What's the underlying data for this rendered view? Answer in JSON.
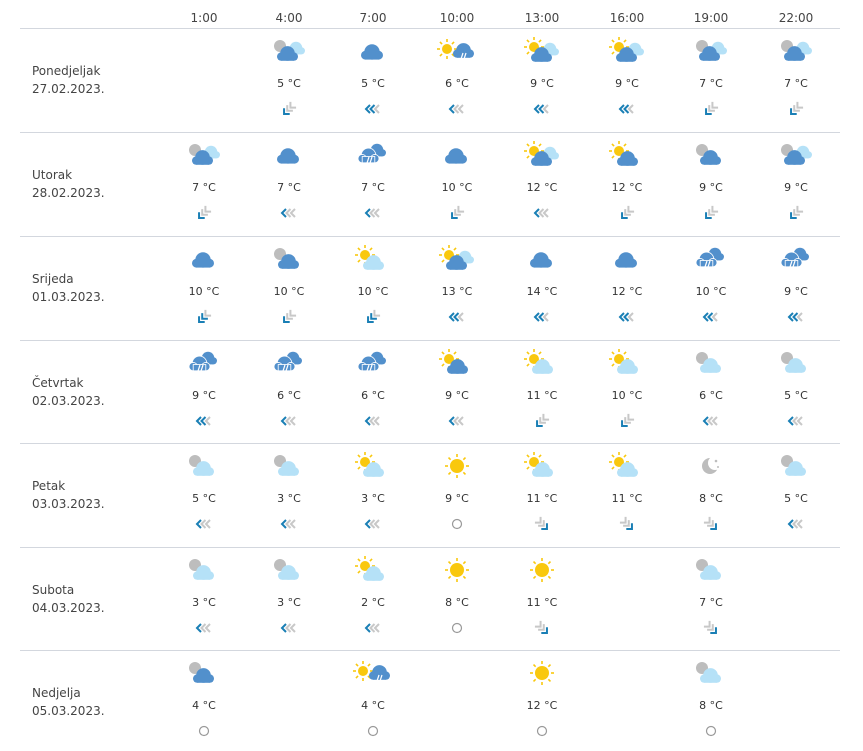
{
  "hours": [
    "1:00",
    "4:00",
    "7:00",
    "10:00",
    "13:00",
    "16:00",
    "19:00",
    "22:00"
  ],
  "colors": {
    "cloud_dark": "#5290cc",
    "cloud_light": "#b5e1f7",
    "sun": "#f9c80e",
    "moon": "#bdbdbd",
    "wind_strong": "#1a7fb5",
    "wind_weak": "#c8c8c8",
    "divider": "#d3d7de"
  },
  "days": [
    {
      "name": "Ponedjeljak",
      "date": "27.02.2023.",
      "slots": [
        null,
        {
          "icon": "moon-clouds",
          "temp": "5 °C",
          "wind": {
            "dir": "SW",
            "strength": 1
          }
        },
        {
          "icon": "cloudy",
          "temp": "5 °C",
          "wind": {
            "dir": "W",
            "strength": 2
          }
        },
        {
          "icon": "sun-rain",
          "temp": "6 °C",
          "wind": {
            "dir": "W",
            "strength": 1
          }
        },
        {
          "icon": "sun-clouds",
          "temp": "9 °C",
          "wind": {
            "dir": "W",
            "strength": 2
          }
        },
        {
          "icon": "sun-clouds",
          "temp": "9 °C",
          "wind": {
            "dir": "W",
            "strength": 2
          }
        },
        {
          "icon": "moon-clouds",
          "temp": "7 °C",
          "wind": {
            "dir": "SW",
            "strength": 1
          }
        },
        {
          "icon": "moon-clouds",
          "temp": "7 °C",
          "wind": {
            "dir": "SW",
            "strength": 1
          }
        }
      ]
    },
    {
      "name": "Utorak",
      "date": "28.02.2023.",
      "slots": [
        {
          "icon": "moon-clouds",
          "temp": "7 °C",
          "wind": {
            "dir": "SW",
            "strength": 1
          }
        },
        {
          "icon": "cloudy",
          "temp": "7 °C",
          "wind": {
            "dir": "W",
            "strength": 1
          }
        },
        {
          "icon": "rain",
          "temp": "7 °C",
          "wind": {
            "dir": "W",
            "strength": 1
          }
        },
        {
          "icon": "cloudy",
          "temp": "10 °C",
          "wind": {
            "dir": "SW",
            "strength": 1
          }
        },
        {
          "icon": "sun-clouds",
          "temp": "12 °C",
          "wind": {
            "dir": "W",
            "strength": 1
          }
        },
        {
          "icon": "sun-cloud-dark",
          "temp": "12 °C",
          "wind": {
            "dir": "SW",
            "strength": 1
          }
        },
        {
          "icon": "moon-cloud-dark",
          "temp": "9 °C",
          "wind": {
            "dir": "SW",
            "strength": 1
          }
        },
        {
          "icon": "moon-clouds",
          "temp": "9 °C",
          "wind": {
            "dir": "SW",
            "strength": 1
          }
        }
      ]
    },
    {
      "name": "Srijeda",
      "date": "01.03.2023.",
      "slots": [
        {
          "icon": "cloudy",
          "temp": "10 °C",
          "wind": {
            "dir": "SW",
            "strength": 2
          }
        },
        {
          "icon": "moon-cloud-dark",
          "temp": "10 °C",
          "wind": {
            "dir": "SW",
            "strength": 1
          }
        },
        {
          "icon": "sun-cloud-light",
          "temp": "10 °C",
          "wind": {
            "dir": "SW",
            "strength": 2
          }
        },
        {
          "icon": "sun-clouds",
          "temp": "13 °C",
          "wind": {
            "dir": "W",
            "strength": 2
          }
        },
        {
          "icon": "cloudy",
          "temp": "14 °C",
          "wind": {
            "dir": "W",
            "strength": 2
          }
        },
        {
          "icon": "cloudy",
          "temp": "12 °C",
          "wind": {
            "dir": "W",
            "strength": 2
          }
        },
        {
          "icon": "rain",
          "temp": "10 °C",
          "wind": {
            "dir": "W",
            "strength": 2
          }
        },
        {
          "icon": "rain",
          "temp": "9 °C",
          "wind": {
            "dir": "W",
            "strength": 2
          }
        }
      ]
    },
    {
      "name": "Četvrtak",
      "date": "02.03.2023.",
      "slots": [
        {
          "icon": "rain",
          "temp": "9 °C",
          "wind": {
            "dir": "W",
            "strength": 2
          }
        },
        {
          "icon": "rain",
          "temp": "6 °C",
          "wind": {
            "dir": "W",
            "strength": 1
          }
        },
        {
          "icon": "rain",
          "temp": "6 °C",
          "wind": {
            "dir": "W",
            "strength": 1
          }
        },
        {
          "icon": "sun-cloud-dark",
          "temp": "9 °C",
          "wind": {
            "dir": "W",
            "strength": 1
          }
        },
        {
          "icon": "sun-cloud-light",
          "temp": "11 °C",
          "wind": {
            "dir": "SW",
            "strength": 1
          }
        },
        {
          "icon": "sun-cloud-light",
          "temp": "10 °C",
          "wind": {
            "dir": "SW",
            "strength": 1
          }
        },
        {
          "icon": "moon-cloud-light",
          "temp": "6 °C",
          "wind": {
            "dir": "W",
            "strength": 1
          }
        },
        {
          "icon": "moon-cloud-light",
          "temp": "5 °C",
          "wind": {
            "dir": "W",
            "strength": 1
          }
        }
      ]
    },
    {
      "name": "Petak",
      "date": "03.03.2023.",
      "slots": [
        {
          "icon": "moon-cloud-light",
          "temp": "5 °C",
          "wind": {
            "dir": "W",
            "strength": 1
          }
        },
        {
          "icon": "moon-cloud-light",
          "temp": "3 °C",
          "wind": {
            "dir": "W",
            "strength": 1
          }
        },
        {
          "icon": "sun-cloud-light",
          "temp": "3 °C",
          "wind": {
            "dir": "W",
            "strength": 1
          }
        },
        {
          "icon": "sun",
          "temp": "9 °C",
          "wind": {
            "dir": "calm",
            "strength": 0
          }
        },
        {
          "icon": "sun-cloud-light",
          "temp": "11 °C",
          "wind": {
            "dir": "SE",
            "strength": 1
          }
        },
        {
          "icon": "sun-cloud-light",
          "temp": "11 °C",
          "wind": {
            "dir": "SE",
            "strength": 1
          }
        },
        {
          "icon": "moon",
          "temp": "8 °C",
          "wind": {
            "dir": "SE",
            "strength": 1
          }
        },
        {
          "icon": "moon-cloud-light",
          "temp": "5 °C",
          "wind": {
            "dir": "W",
            "strength": 1
          }
        }
      ]
    },
    {
      "name": "Subota",
      "date": "04.03.2023.",
      "slots": [
        {
          "icon": "moon-cloud-light",
          "temp": "3 °C",
          "wind": {
            "dir": "W",
            "strength": 1
          }
        },
        {
          "icon": "moon-cloud-light",
          "temp": "3 °C",
          "wind": {
            "dir": "W",
            "strength": 1
          }
        },
        {
          "icon": "sun-cloud-light",
          "temp": "2 °C",
          "wind": {
            "dir": "W",
            "strength": 1
          }
        },
        {
          "icon": "sun",
          "temp": "8 °C",
          "wind": {
            "dir": "calm",
            "strength": 0
          }
        },
        {
          "icon": "sun",
          "temp": "11 °C",
          "wind": {
            "dir": "SE",
            "strength": 1
          }
        },
        null,
        {
          "icon": "moon-cloud-light",
          "temp": "7 °C",
          "wind": {
            "dir": "SE",
            "strength": 1
          }
        },
        null
      ]
    },
    {
      "name": "Nedjelja",
      "date": "05.03.2023.",
      "slots": [
        {
          "icon": "moon-cloud-dark",
          "temp": "4 °C",
          "wind": {
            "dir": "calm",
            "strength": 0
          }
        },
        null,
        {
          "icon": "sun-rain",
          "temp": "4 °C",
          "wind": {
            "dir": "calm",
            "strength": 0
          }
        },
        null,
        {
          "icon": "sun",
          "temp": "12 °C",
          "wind": {
            "dir": "calm",
            "strength": 0
          }
        },
        null,
        {
          "icon": "moon-cloud-light",
          "temp": "8 °C",
          "wind": {
            "dir": "calm",
            "strength": 0
          }
        },
        null
      ]
    }
  ]
}
